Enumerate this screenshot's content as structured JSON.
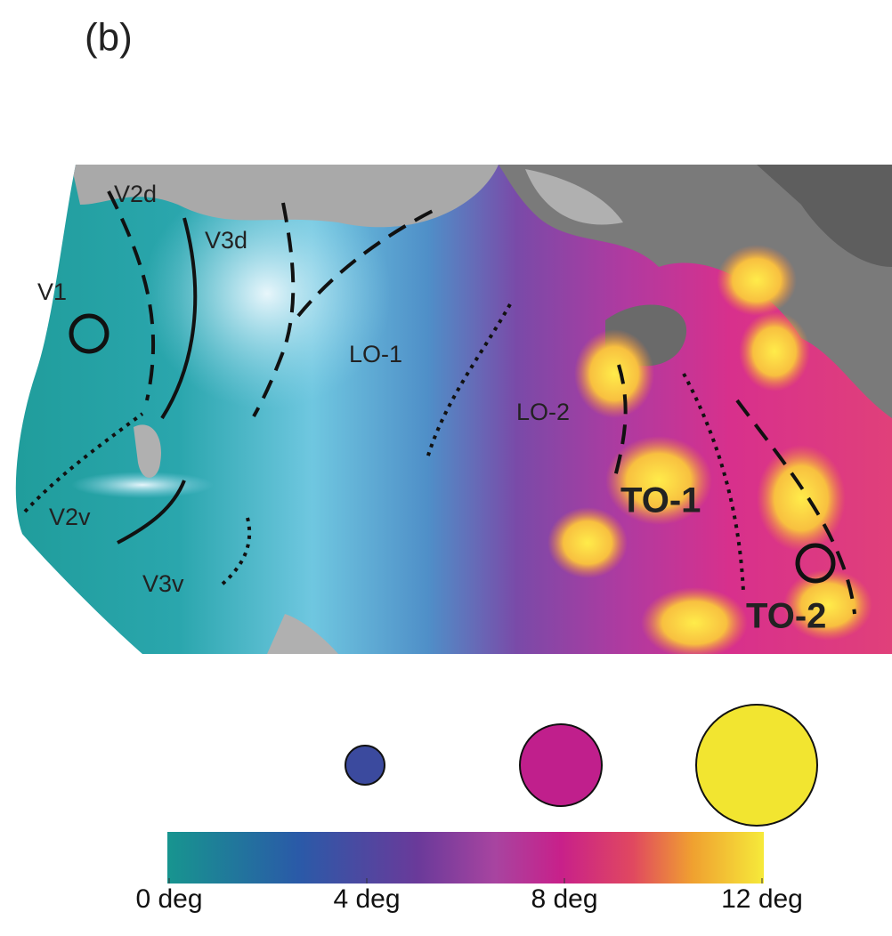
{
  "panel_label": "(b)",
  "regions": [
    "V1",
    "V2d",
    "V3d",
    "LO-1",
    "LO-2",
    "TO-1",
    "V2v",
    "V3v",
    "TO-2"
  ],
  "colorbar": {
    "range": [
      0,
      12
    ],
    "ticks": [
      {
        "value": 0,
        "label": "0 deg"
      },
      {
        "value": 4,
        "label": "4 deg"
      },
      {
        "value": 8,
        "label": "8 deg"
      },
      {
        "value": 12,
        "label": "12 deg"
      }
    ]
  }
}
